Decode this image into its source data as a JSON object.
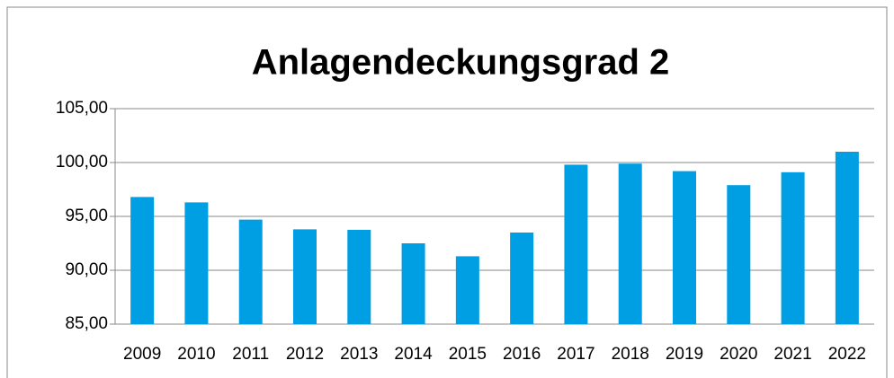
{
  "chart_data": {
    "type": "bar",
    "title": "Anlagendeckungsgrad 2",
    "categories": [
      "2009",
      "2010",
      "2011",
      "2012",
      "2013",
      "2014",
      "2015",
      "2016",
      "2017",
      "2018",
      "2019",
      "2020",
      "2021",
      "2022"
    ],
    "values": [
      96.8,
      96.3,
      94.7,
      93.8,
      93.75,
      92.5,
      91.3,
      93.5,
      99.8,
      99.9,
      99.2,
      97.9,
      99.1,
      101.0
    ],
    "color": "#009fe3",
    "ylim": [
      85,
      105
    ],
    "yticks": [
      {
        "value": 85,
        "label": "85,00"
      },
      {
        "value": 90,
        "label": "90,00"
      },
      {
        "value": 95,
        "label": "95,00"
      },
      {
        "value": 100,
        "label": "100,00"
      },
      {
        "value": 105,
        "label": "105,00"
      }
    ],
    "grid": true
  }
}
